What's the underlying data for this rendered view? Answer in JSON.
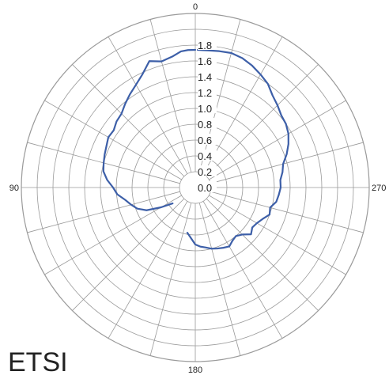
{
  "caption": "ETSI",
  "chart_data": {
    "type": "polar",
    "radial_ticks": [
      "0.0",
      "0.2",
      "0.4",
      "0.6",
      "0.8",
      "1.0",
      "1.2",
      "1.4",
      "1.6",
      "1.8"
    ],
    "radial_range": [
      0,
      2.2
    ],
    "angle_labels": [
      {
        "angle": 0,
        "text": "0"
      },
      {
        "angle": 90,
        "text": "90"
      },
      {
        "angle": 180,
        "text": "180"
      },
      {
        "angle": 270,
        "text": "270"
      }
    ],
    "angle_direction": "counterclockwise",
    "zero_position": "top",
    "line_color": "#3d5fa8",
    "grid_color": "#9a9a9a",
    "series": [
      {
        "points": [
          {
            "angle": 0,
            "r": 1.74
          },
          {
            "angle": 3,
            "r": 1.74
          },
          {
            "angle": 6,
            "r": 1.73
          },
          {
            "angle": 10,
            "r": 1.68
          },
          {
            "angle": 15,
            "r": 1.65
          },
          {
            "angle": 20,
            "r": 1.7
          },
          {
            "angle": 25,
            "r": 1.58
          },
          {
            "angle": 30,
            "r": 1.5
          },
          {
            "angle": 35,
            "r": 1.44
          },
          {
            "angle": 40,
            "r": 1.38
          },
          {
            "angle": 45,
            "r": 1.32
          },
          {
            "angle": 50,
            "r": 1.3
          },
          {
            "angle": 55,
            "r": 1.26
          },
          {
            "angle": 60,
            "r": 1.27
          },
          {
            "angle": 65,
            "r": 1.24
          },
          {
            "angle": 70,
            "r": 1.22
          },
          {
            "angle": 75,
            "r": 1.2
          },
          {
            "angle": 80,
            "r": 1.18
          },
          {
            "angle": 85,
            "r": 1.12
          },
          {
            "angle": 90,
            "r": 1.04
          },
          {
            "angle": 95,
            "r": 0.99
          },
          {
            "angle": 100,
            "r": 0.9
          },
          {
            "angle": 105,
            "r": 0.84
          },
          {
            "angle": 110,
            "r": 0.78
          },
          {
            "angle": 115,
            "r": 0.68
          },
          {
            "angle": 120,
            "r": 0.5
          },
          {
            "angle": 125,
            "r": 0.35
          }
        ]
      },
      {
        "points": [
          {
            "angle": 170,
            "r": 0.58
          },
          {
            "angle": 175,
            "r": 0.64
          },
          {
            "angle": 180,
            "r": 0.72
          },
          {
            "angle": 185,
            "r": 0.75
          },
          {
            "angle": 190,
            "r": 0.77
          },
          {
            "angle": 195,
            "r": 0.8
          },
          {
            "angle": 200,
            "r": 0.82
          },
          {
            "angle": 205,
            "r": 0.84
          },
          {
            "angle": 210,
            "r": 0.86
          },
          {
            "angle": 215,
            "r": 0.82
          },
          {
            "angle": 220,
            "r": 0.8
          },
          {
            "angle": 225,
            "r": 0.84
          },
          {
            "angle": 230,
            "r": 0.92
          },
          {
            "angle": 235,
            "r": 0.88
          },
          {
            "angle": 240,
            "r": 0.9
          },
          {
            "angle": 245,
            "r": 0.94
          },
          {
            "angle": 250,
            "r": 1.0
          },
          {
            "angle": 255,
            "r": 0.98
          },
          {
            "angle": 260,
            "r": 1.04
          },
          {
            "angle": 265,
            "r": 1.06
          },
          {
            "angle": 270,
            "r": 1.08
          },
          {
            "angle": 275,
            "r": 1.08
          },
          {
            "angle": 280,
            "r": 1.12
          },
          {
            "angle": 285,
            "r": 1.15
          },
          {
            "angle": 290,
            "r": 1.23
          },
          {
            "angle": 295,
            "r": 1.3
          },
          {
            "angle": 300,
            "r": 1.36
          },
          {
            "angle": 305,
            "r": 1.4
          },
          {
            "angle": 310,
            "r": 1.42
          },
          {
            "angle": 315,
            "r": 1.47
          },
          {
            "angle": 320,
            "r": 1.52
          },
          {
            "angle": 325,
            "r": 1.6
          },
          {
            "angle": 330,
            "r": 1.65
          },
          {
            "angle": 335,
            "r": 1.7
          },
          {
            "angle": 340,
            "r": 1.74
          },
          {
            "angle": 345,
            "r": 1.76
          },
          {
            "angle": 350,
            "r": 1.75
          },
          {
            "angle": 355,
            "r": 1.74
          },
          {
            "angle": 359,
            "r": 1.74
          }
        ]
      }
    ]
  }
}
